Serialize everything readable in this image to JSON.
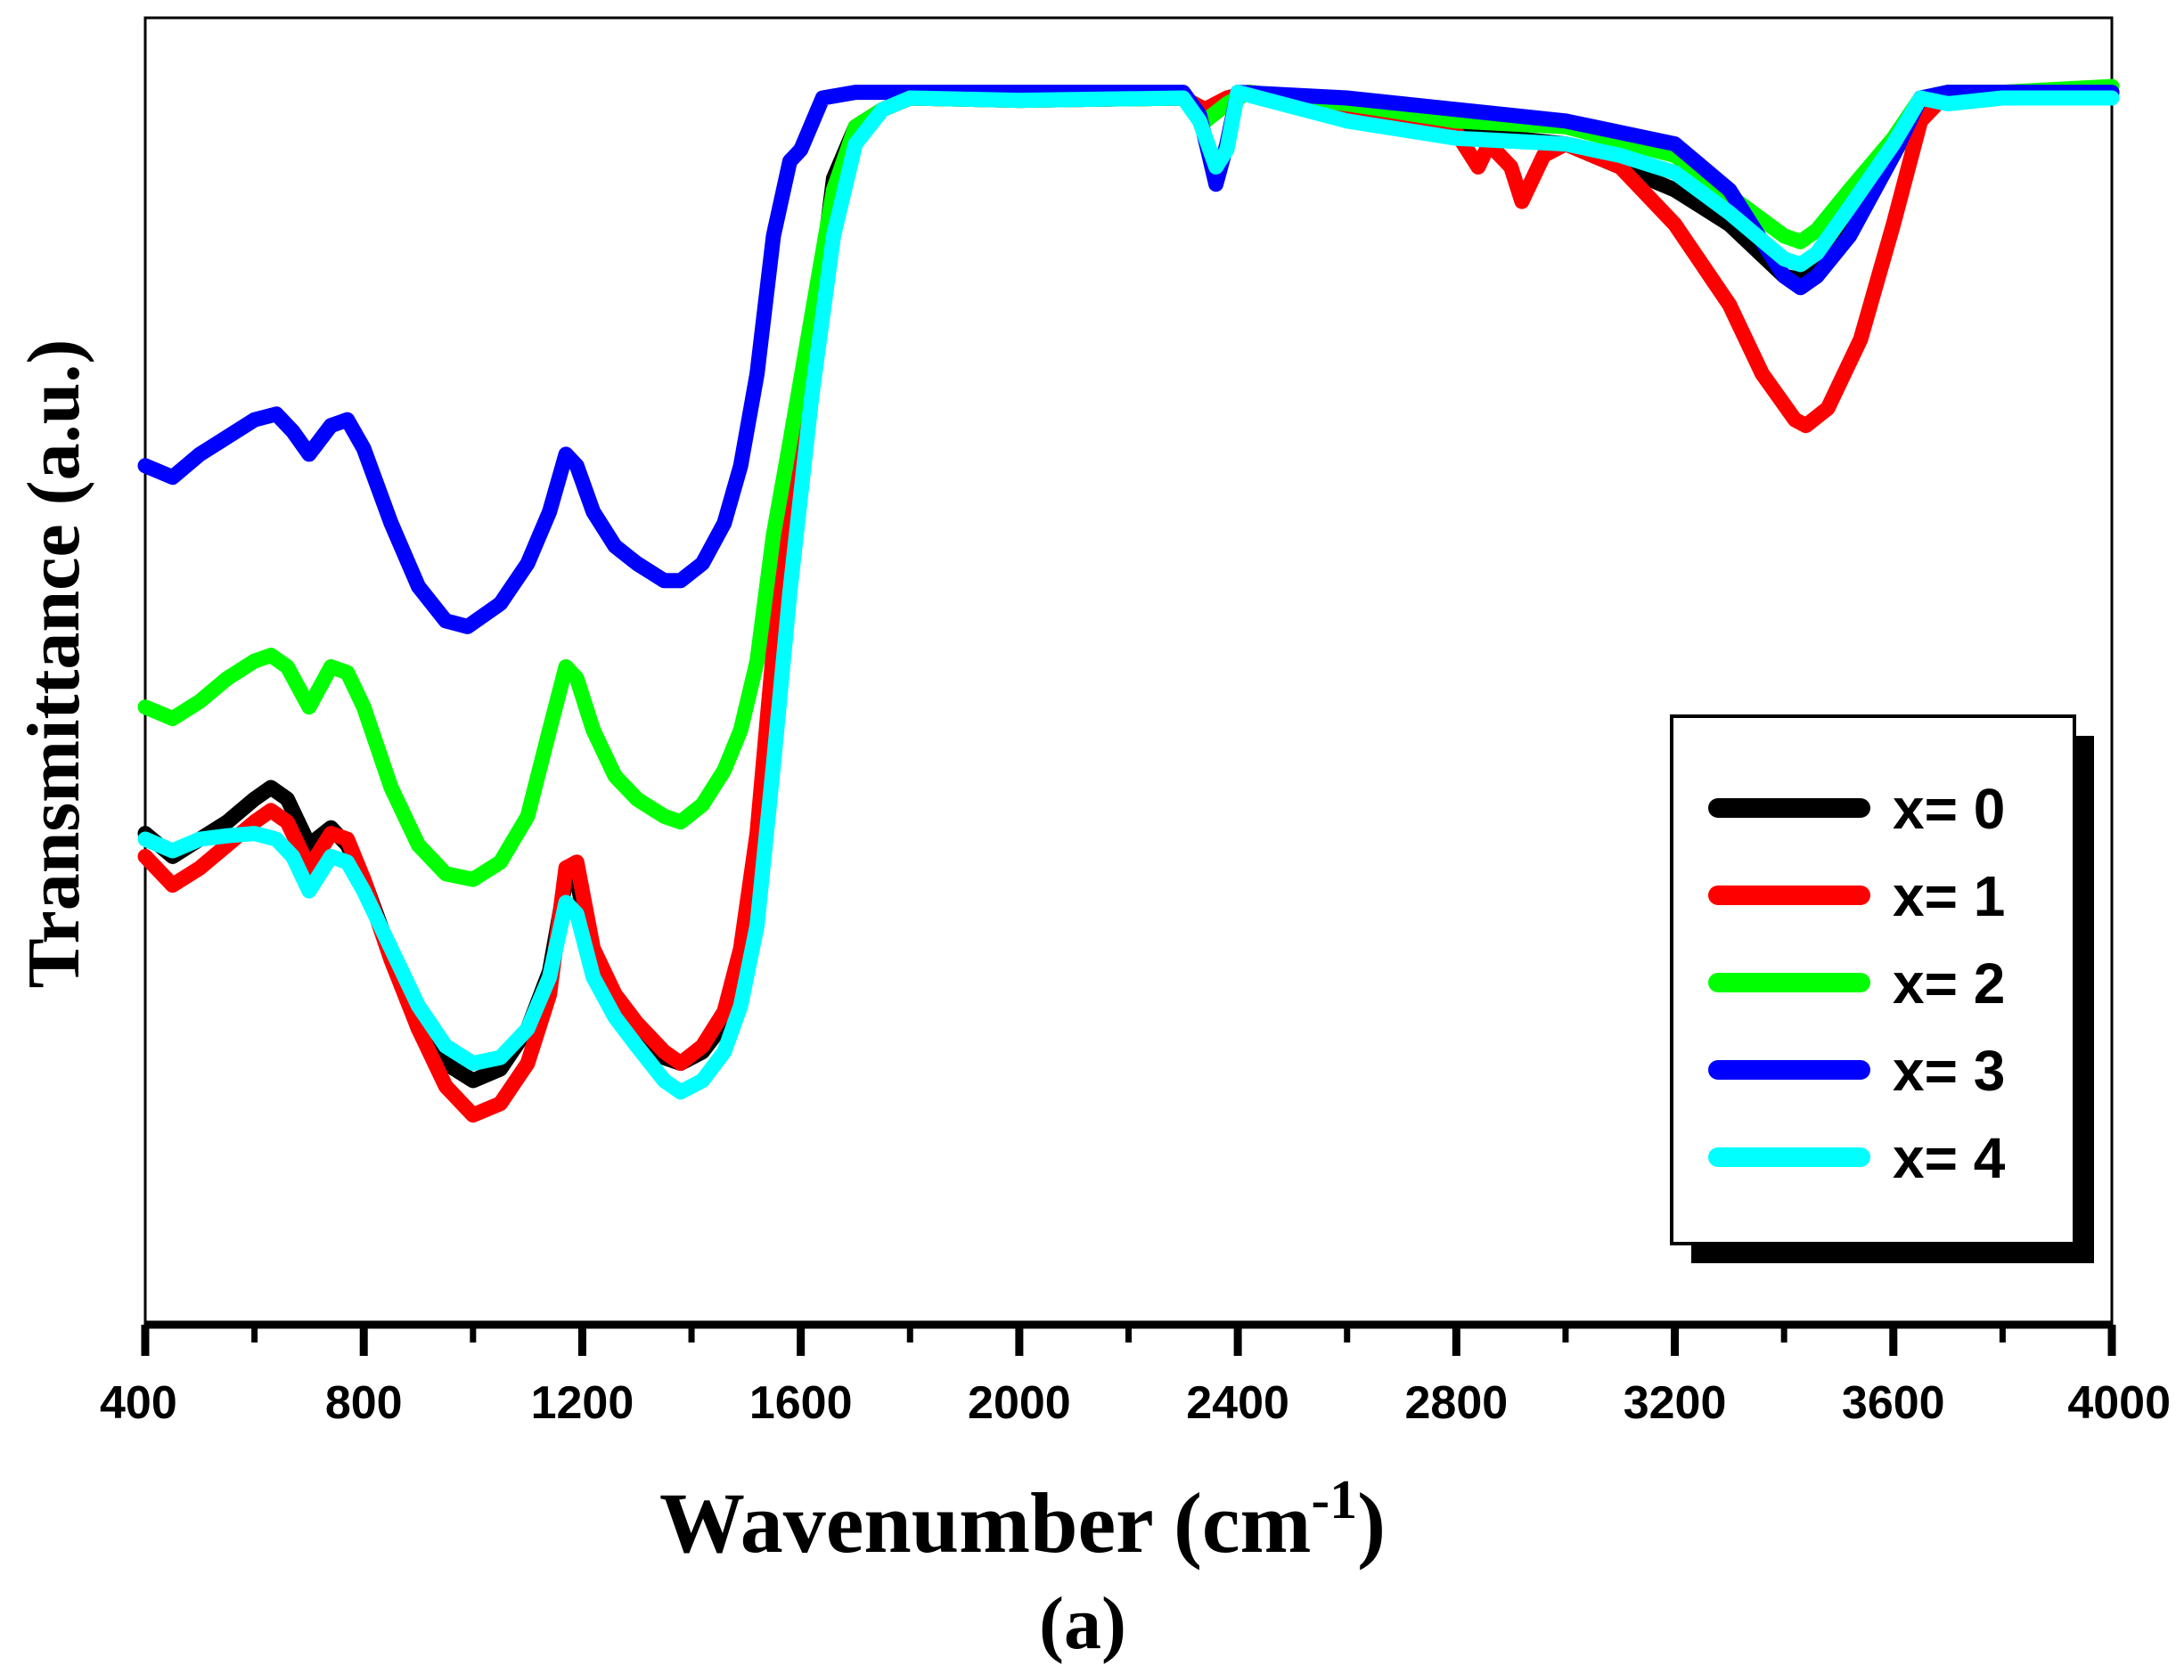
{
  "chart_data": {
    "type": "line",
    "title": "",
    "xlabel": "Wavenumber (cm",
    "xlabel_sup": "-1",
    "xlabel_close": ")",
    "ylabel": "Transmittance (a.u.)",
    "sublabel": "(a)",
    "xlim": [
      400,
      4000
    ],
    "ylim": [
      0,
      100
    ],
    "xticks": [
      "400",
      "800",
      "1200",
      "1600",
      "2000",
      "2400",
      "2800",
      "3200",
      "3600",
      "4000"
    ],
    "grid": false,
    "legend_position": "right",
    "series": [
      {
        "name": "x= 0",
        "color": "#000000",
        "points": [
          [
            400,
            36
          ],
          [
            450,
            34
          ],
          [
            500,
            35.5
          ],
          [
            550,
            37
          ],
          [
            600,
            39
          ],
          [
            630,
            40
          ],
          [
            660,
            39
          ],
          [
            700,
            35
          ],
          [
            740,
            36.5
          ],
          [
            770,
            35
          ],
          [
            800,
            32
          ],
          [
            850,
            25.5
          ],
          [
            900,
            19
          ],
          [
            950,
            16
          ],
          [
            1000,
            14.5
          ],
          [
            1050,
            15.5
          ],
          [
            1100,
            19
          ],
          [
            1140,
            24
          ],
          [
            1170,
            32
          ],
          [
            1190,
            32
          ],
          [
            1220,
            25
          ],
          [
            1260,
            21
          ],
          [
            1300,
            19
          ],
          [
            1350,
            16.5
          ],
          [
            1380,
            16
          ],
          [
            1420,
            17
          ],
          [
            1460,
            19.5
          ],
          [
            1490,
            24
          ],
          [
            1520,
            34
          ],
          [
            1550,
            50
          ],
          [
            1580,
            62
          ],
          [
            1620,
            78
          ],
          [
            1660,
            93
          ],
          [
            1700,
            97.5
          ],
          [
            1750,
            99
          ],
          [
            1800,
            100
          ],
          [
            2000,
            99.8
          ],
          [
            2300,
            100
          ],
          [
            2340,
            98
          ],
          [
            2380,
            99.5
          ],
          [
            2420,
            100.5
          ],
          [
            2600,
            99.5
          ],
          [
            2800,
            97
          ],
          [
            3000,
            96
          ],
          [
            3200,
            92
          ],
          [
            3300,
            89
          ],
          [
            3400,
            84.5
          ],
          [
            3430,
            84.2
          ],
          [
            3460,
            85
          ],
          [
            3520,
            89
          ],
          [
            3600,
            95
          ],
          [
            3650,
            99.5
          ],
          [
            3700,
            100
          ],
          [
            3800,
            100.5
          ],
          [
            4000,
            100.5
          ]
        ]
      },
      {
        "name": "x= 1",
        "color": "#ff0000",
        "points": [
          [
            400,
            34
          ],
          [
            450,
            31.5
          ],
          [
            500,
            33
          ],
          [
            550,
            35
          ],
          [
            600,
            37
          ],
          [
            630,
            38
          ],
          [
            660,
            37
          ],
          [
            700,
            33
          ],
          [
            740,
            36
          ],
          [
            770,
            35.5
          ],
          [
            800,
            32
          ],
          [
            850,
            25
          ],
          [
            900,
            19
          ],
          [
            950,
            14
          ],
          [
            1000,
            11.5
          ],
          [
            1050,
            12.5
          ],
          [
            1100,
            16
          ],
          [
            1140,
            22
          ],
          [
            1170,
            33
          ],
          [
            1190,
            33.5
          ],
          [
            1220,
            26
          ],
          [
            1260,
            22
          ],
          [
            1300,
            19.5
          ],
          [
            1350,
            17
          ],
          [
            1380,
            16
          ],
          [
            1420,
            17.5
          ],
          [
            1460,
            20.5
          ],
          [
            1490,
            26
          ],
          [
            1520,
            36
          ],
          [
            1550,
            52
          ],
          [
            1580,
            64
          ],
          [
            1620,
            78
          ],
          [
            1660,
            92
          ],
          [
            1700,
            97
          ],
          [
            1750,
            99
          ],
          [
            1800,
            100
          ],
          [
            2000,
            99.8
          ],
          [
            2300,
            100
          ],
          [
            2340,
            99
          ],
          [
            2380,
            100
          ],
          [
            2420,
            100.5
          ],
          [
            2600,
            99
          ],
          [
            2800,
            97
          ],
          [
            2840,
            94
          ],
          [
            2860,
            96
          ],
          [
            2900,
            94
          ],
          [
            2920,
            91
          ],
          [
            2960,
            95
          ],
          [
            3000,
            96
          ],
          [
            3100,
            94
          ],
          [
            3200,
            89
          ],
          [
            3300,
            82
          ],
          [
            3360,
            76
          ],
          [
            3420,
            72
          ],
          [
            3440,
            71.5
          ],
          [
            3480,
            73
          ],
          [
            3540,
            79
          ],
          [
            3600,
            89
          ],
          [
            3650,
            98
          ],
          [
            3700,
            100.5
          ],
          [
            3800,
            100.5
          ],
          [
            4000,
            100.5
          ]
        ]
      },
      {
        "name": "x= 2",
        "color": "#00ff00",
        "points": [
          [
            400,
            47
          ],
          [
            450,
            46
          ],
          [
            500,
            47.5
          ],
          [
            550,
            49.5
          ],
          [
            600,
            51
          ],
          [
            630,
            51.5
          ],
          [
            660,
            50.5
          ],
          [
            700,
            47
          ],
          [
            740,
            50.5
          ],
          [
            770,
            50
          ],
          [
            800,
            47
          ],
          [
            850,
            40
          ],
          [
            900,
            35
          ],
          [
            950,
            32.5
          ],
          [
            1000,
            32
          ],
          [
            1050,
            33.5
          ],
          [
            1100,
            37.5
          ],
          [
            1140,
            45
          ],
          [
            1170,
            50.5
          ],
          [
            1190,
            49.5
          ],
          [
            1220,
            45
          ],
          [
            1260,
            41
          ],
          [
            1300,
            39
          ],
          [
            1350,
            37.5
          ],
          [
            1380,
            37
          ],
          [
            1420,
            38.5
          ],
          [
            1460,
            41.5
          ],
          [
            1490,
            45
          ],
          [
            1520,
            51
          ],
          [
            1550,
            62
          ],
          [
            1580,
            70
          ],
          [
            1620,
            81
          ],
          [
            1660,
            92
          ],
          [
            1700,
            97.5
          ],
          [
            1750,
            99
          ],
          [
            1800,
            100
          ],
          [
            2000,
            99.8
          ],
          [
            2300,
            100
          ],
          [
            2340,
            98
          ],
          [
            2380,
            99.5
          ],
          [
            2420,
            100.5
          ],
          [
            2600,
            99.5
          ],
          [
            2800,
            98
          ],
          [
            3000,
            97.5
          ],
          [
            3200,
            95
          ],
          [
            3300,
            91.5
          ],
          [
            3400,
            88
          ],
          [
            3430,
            87.5
          ],
          [
            3460,
            88.5
          ],
          [
            3520,
            92
          ],
          [
            3600,
            96.5
          ],
          [
            3650,
            100
          ],
          [
            3700,
            100.5
          ],
          [
            3800,
            100.5
          ],
          [
            4000,
            101
          ]
        ]
      },
      {
        "name": "x= 3",
        "color": "#0000ff",
        "points": [
          [
            400,
            68
          ],
          [
            450,
            67
          ],
          [
            500,
            69
          ],
          [
            550,
            70.5
          ],
          [
            600,
            72
          ],
          [
            640,
            72.5
          ],
          [
            670,
            71
          ],
          [
            700,
            69
          ],
          [
            740,
            71.5
          ],
          [
            770,
            72
          ],
          [
            800,
            69.5
          ],
          [
            850,
            63
          ],
          [
            900,
            57.5
          ],
          [
            950,
            54.5
          ],
          [
            990,
            54
          ],
          [
            1050,
            56
          ],
          [
            1100,
            59.5
          ],
          [
            1140,
            64
          ],
          [
            1170,
            69
          ],
          [
            1190,
            68
          ],
          [
            1220,
            64
          ],
          [
            1260,
            61
          ],
          [
            1300,
            59.5
          ],
          [
            1350,
            58
          ],
          [
            1380,
            58
          ],
          [
            1420,
            59.5
          ],
          [
            1460,
            63
          ],
          [
            1490,
            68
          ],
          [
            1520,
            76
          ],
          [
            1550,
            88
          ],
          [
            1580,
            94.5
          ],
          [
            1600,
            95.5
          ],
          [
            1640,
            100
          ],
          [
            1700,
            100.5
          ],
          [
            1800,
            100.5
          ],
          [
            2000,
            100.5
          ],
          [
            2300,
            100.5
          ],
          [
            2330,
            98.5
          ],
          [
            2360,
            92.5
          ],
          [
            2380,
            96
          ],
          [
            2400,
            100.5
          ],
          [
            2600,
            100
          ],
          [
            2800,
            99
          ],
          [
            3000,
            98
          ],
          [
            3200,
            96
          ],
          [
            3300,
            92
          ],
          [
            3400,
            84.5
          ],
          [
            3430,
            83.5
          ],
          [
            3460,
            84.5
          ],
          [
            3520,
            88
          ],
          [
            3600,
            95
          ],
          [
            3650,
            100
          ],
          [
            3700,
            100.5
          ],
          [
            3800,
            100.5
          ],
          [
            4000,
            100.5
          ]
        ]
      },
      {
        "name": "x= 4",
        "color": "#00ffff",
        "points": [
          [
            400,
            35.5
          ],
          [
            450,
            34.5
          ],
          [
            500,
            35.5
          ],
          [
            550,
            35.8
          ],
          [
            600,
            36
          ],
          [
            640,
            35.5
          ],
          [
            670,
            34
          ],
          [
            700,
            31
          ],
          [
            740,
            34
          ],
          [
            770,
            33.5
          ],
          [
            800,
            31
          ],
          [
            850,
            26
          ],
          [
            900,
            21
          ],
          [
            950,
            17.5
          ],
          [
            1000,
            16
          ],
          [
            1050,
            16.5
          ],
          [
            1100,
            19
          ],
          [
            1140,
            23.5
          ],
          [
            1170,
            30
          ],
          [
            1190,
            29
          ],
          [
            1220,
            23.5
          ],
          [
            1260,
            20
          ],
          [
            1300,
            17.5
          ],
          [
            1350,
            14.5
          ],
          [
            1380,
            13.5
          ],
          [
            1420,
            14.5
          ],
          [
            1460,
            17
          ],
          [
            1490,
            21
          ],
          [
            1520,
            28
          ],
          [
            1550,
            42
          ],
          [
            1580,
            57
          ],
          [
            1620,
            74
          ],
          [
            1660,
            88
          ],
          [
            1700,
            96
          ],
          [
            1750,
            99
          ],
          [
            1800,
            100
          ],
          [
            2000,
            99.8
          ],
          [
            2300,
            100
          ],
          [
            2330,
            98
          ],
          [
            2360,
            94
          ],
          [
            2380,
            95.5
          ],
          [
            2400,
            100.5
          ],
          [
            2600,
            98
          ],
          [
            2800,
            96.5
          ],
          [
            3000,
            96
          ],
          [
            3100,
            95
          ],
          [
            3200,
            93.5
          ],
          [
            3300,
            90
          ],
          [
            3400,
            86
          ],
          [
            3430,
            85.5
          ],
          [
            3460,
            86.5
          ],
          [
            3520,
            90.5
          ],
          [
            3600,
            96
          ],
          [
            3650,
            100
          ],
          [
            3700,
            99.5
          ],
          [
            3800,
            100
          ],
          [
            4000,
            100
          ]
        ]
      }
    ]
  }
}
